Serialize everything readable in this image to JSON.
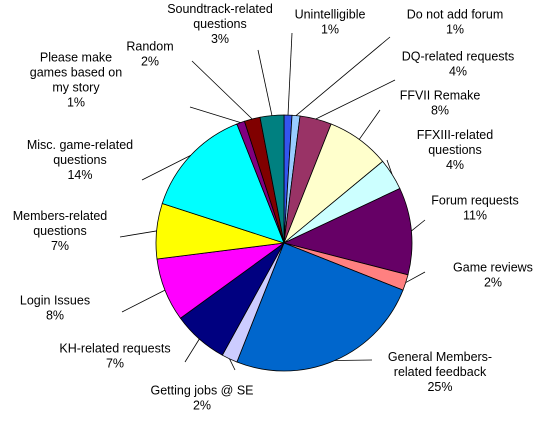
{
  "chart_data": {
    "type": "pie",
    "title": "",
    "slices": [
      {
        "label_lines": [
          "Unintelligible",
          "1%"
        ],
        "value": 1,
        "color": "#3355ee"
      },
      {
        "label_lines": [
          "Do not add forum",
          "1%"
        ],
        "value": 1,
        "color": "#99ccff"
      },
      {
        "label_lines": [
          "DQ-related requests",
          "4%"
        ],
        "value": 4,
        "color": "#993366"
      },
      {
        "label_lines": [
          "FFVII Remake",
          "8%"
        ],
        "value": 8,
        "color": "#ffffcc"
      },
      {
        "label_lines": [
          "FFXIII-related",
          "questions",
          "4%"
        ],
        "value": 4,
        "color": "#ccffff"
      },
      {
        "label_lines": [
          "Forum requests",
          "11%"
        ],
        "value": 11,
        "color": "#660066"
      },
      {
        "label_lines": [
          "Game reviews",
          "2%"
        ],
        "value": 2,
        "color": "#ff8080"
      },
      {
        "label_lines": [
          "General Members-",
          "related feedback",
          "25%"
        ],
        "value": 25,
        "color": "#0066cc"
      },
      {
        "label_lines": [
          "Getting jobs @ SE",
          "2%"
        ],
        "value": 2,
        "color": "#ccccff"
      },
      {
        "label_lines": [
          "KH-related requests",
          "7%"
        ],
        "value": 7,
        "color": "#000080"
      },
      {
        "label_lines": [
          "Login Issues",
          "8%"
        ],
        "value": 8,
        "color": "#ff00ff"
      },
      {
        "label_lines": [
          "Members-related",
          "questions",
          "7%"
        ],
        "value": 7,
        "color": "#ffff00"
      },
      {
        "label_lines": [
          "Misc. game-related",
          "questions",
          "14%"
        ],
        "value": 14,
        "color": "#00ffff"
      },
      {
        "label_lines": [
          "Please make",
          "games based on",
          "my story",
          "1%"
        ],
        "value": 1,
        "color": "#800080"
      },
      {
        "label_lines": [
          "Random",
          "2%"
        ],
        "value": 2,
        "color": "#800000"
      },
      {
        "label_lines": [
          "Soundtrack-related",
          "questions",
          "3%"
        ],
        "value": 3,
        "color": "#008080"
      }
    ]
  }
}
